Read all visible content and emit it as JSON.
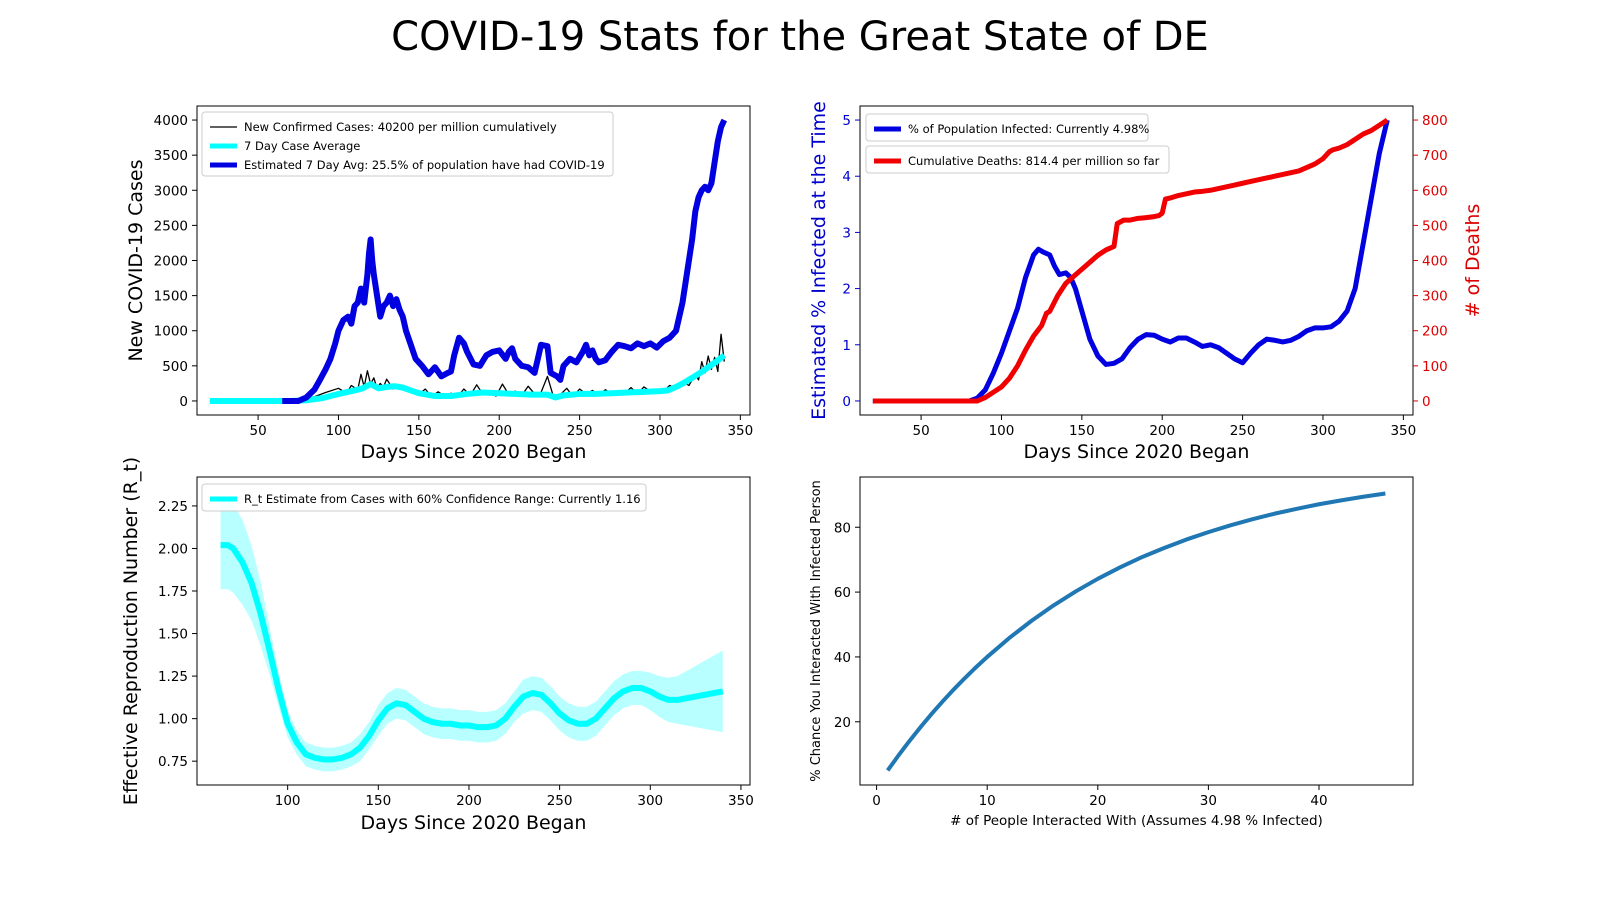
{
  "figure_title": "COVID-19 Stats for the Great State of DE",
  "colors": {
    "black": "#000000",
    "cyan": "#00ffff",
    "blue": "#0000e0",
    "red": "#f00000",
    "steel": "#1f77b4",
    "band": "#b8ffff",
    "axis_blue": "#0000cc",
    "axis_red": "#dd0000"
  },
  "chart_data": [
    {
      "id": "cases",
      "type": "line",
      "xlabel": "Days Since 2020 Began",
      "ylabel": "New COVID-19 Cases",
      "xlim": [
        12,
        356
      ],
      "ylim": [
        -200,
        4200
      ],
      "xticks": [
        50,
        100,
        150,
        200,
        250,
        300,
        350
      ],
      "yticks": [
        0,
        500,
        1000,
        1500,
        2000,
        2500,
        3000,
        3500,
        4000
      ],
      "legend": "top-left",
      "series": [
        {
          "name": "New Confirmed Cases: 40200 per million cumulatively",
          "color_key": "black",
          "width": 1.3,
          "x": [
            20,
            60,
            75,
            85,
            92,
            100,
            105,
            108,
            112,
            114,
            116,
            118,
            120,
            122,
            124,
            126,
            128,
            130,
            134,
            138,
            142,
            146,
            150,
            154,
            158,
            162,
            166,
            170,
            174,
            178,
            182,
            186,
            190,
            194,
            198,
            202,
            206,
            210,
            214,
            218,
            222,
            226,
            230,
            234,
            238,
            242,
            246,
            250,
            254,
            258,
            262,
            266,
            270,
            274,
            278,
            282,
            286,
            290,
            294,
            298,
            302,
            306,
            310,
            314,
            318,
            322,
            324,
            326,
            328,
            330,
            332,
            334,
            336,
            338,
            340
          ],
          "y": [
            0,
            0,
            10,
            60,
            120,
            180,
            110,
            220,
            160,
            380,
            200,
            430,
            240,
            330,
            180,
            250,
            200,
            310,
            170,
            230,
            140,
            160,
            90,
            170,
            60,
            130,
            70,
            110,
            60,
            170,
            80,
            230,
            90,
            120,
            70,
            240,
            90,
            140,
            80,
            210,
            100,
            120,
            350,
            40,
            90,
            180,
            60,
            170,
            100,
            150,
            80,
            160,
            100,
            140,
            110,
            190,
            100,
            200,
            140,
            160,
            130,
            220,
            190,
            280,
            220,
            380,
            300,
            560,
            400,
            640,
            450,
            620,
            420,
            950,
            560
          ]
        },
        {
          "name": "7 Day Case Average",
          "color_key": "cyan",
          "width": 6,
          "x": [
            20,
            60,
            70,
            80,
            90,
            100,
            110,
            115,
            120,
            125,
            130,
            135,
            140,
            145,
            150,
            160,
            170,
            180,
            190,
            200,
            210,
            220,
            230,
            235,
            240,
            250,
            260,
            270,
            280,
            290,
            300,
            305,
            310,
            315,
            320,
            325,
            330,
            335,
            340
          ],
          "y": [
            0,
            0,
            0,
            10,
            40,
            100,
            150,
            180,
            240,
            180,
            200,
            210,
            190,
            150,
            110,
            70,
            70,
            100,
            120,
            110,
            100,
            90,
            90,
            50,
            80,
            100,
            100,
            110,
            120,
            130,
            140,
            150,
            200,
            260,
            330,
            400,
            480,
            560,
            650
          ]
        },
        {
          "name": "Estimated 7 Day Avg: 25.5% of population have had COVID-19",
          "color_key": "blue",
          "width": 6,
          "x": [
            65,
            70,
            75,
            80,
            85,
            88,
            92,
            95,
            98,
            100,
            103,
            106,
            108,
            110,
            112,
            114,
            116,
            118,
            119,
            120,
            121,
            122,
            124,
            126,
            128,
            130,
            132,
            134,
            136,
            138,
            140,
            142,
            145,
            148,
            152,
            156,
            160,
            164,
            168,
            170,
            172,
            175,
            178,
            180,
            184,
            188,
            192,
            196,
            200,
            204,
            206,
            208,
            210,
            214,
            218,
            222,
            226,
            230,
            232,
            236,
            238,
            240,
            244,
            248,
            252,
            254,
            256,
            258,
            260,
            262,
            266,
            270,
            274,
            278,
            282,
            286,
            290,
            294,
            298,
            302,
            306,
            310,
            312,
            314,
            316,
            318,
            320,
            322,
            324,
            326,
            328,
            330,
            332,
            334,
            336,
            338,
            340
          ],
          "y": [
            0,
            0,
            0,
            50,
            160,
            280,
            450,
            600,
            820,
            1000,
            1150,
            1200,
            1100,
            1350,
            1400,
            1600,
            1400,
            1800,
            2100,
            2300,
            2000,
            1800,
            1500,
            1200,
            1350,
            1400,
            1500,
            1350,
            1450,
            1300,
            1200,
            1000,
            800,
            600,
            500,
            380,
            480,
            350,
            400,
            420,
            650,
            900,
            820,
            700,
            520,
            500,
            650,
            700,
            720,
            600,
            700,
            750,
            600,
            500,
            480,
            400,
            800,
            780,
            400,
            350,
            300,
            500,
            600,
            550,
            700,
            800,
            650,
            720,
            600,
            550,
            580,
            700,
            800,
            780,
            750,
            820,
            780,
            820,
            760,
            850,
            900,
            1000,
            1200,
            1400,
            1700,
            2000,
            2300,
            2700,
            2900,
            3000,
            3050,
            3000,
            3100,
            3400,
            3700,
            3900,
            4000
          ]
        }
      ]
    },
    {
      "id": "infected",
      "type": "line",
      "xlabel": "Days Since 2020 Began",
      "ylabel": "Estimated % Infected at the Time",
      "y2label": "# of Deaths",
      "xlim": [
        12,
        356
      ],
      "ylim": [
        -0.25,
        5.25
      ],
      "y2lim": [
        -40,
        840
      ],
      "xticks": [
        50,
        100,
        150,
        200,
        250,
        300,
        350
      ],
      "yticks": [
        0,
        1,
        2,
        3,
        4,
        5
      ],
      "y2ticks": [
        0,
        100,
        200,
        300,
        400,
        500,
        600,
        700,
        800
      ],
      "legend": "top-left",
      "series": [
        {
          "name": "% of Population Infected: Currently 4.98%",
          "color_key": "blue",
          "axis": "left",
          "width": 5,
          "x": [
            20,
            70,
            80,
            85,
            90,
            95,
            100,
            105,
            110,
            115,
            120,
            123,
            126,
            130,
            133,
            136,
            140,
            143,
            146,
            150,
            155,
            160,
            165,
            170,
            175,
            180,
            185,
            190,
            195,
            200,
            205,
            210,
            215,
            220,
            225,
            230,
            235,
            240,
            245,
            250,
            255,
            260,
            265,
            270,
            275,
            280,
            285,
            290,
            295,
            300,
            305,
            310,
            315,
            320,
            325,
            330,
            335,
            340
          ],
          "y": [
            0,
            0,
            0,
            0.05,
            0.2,
            0.5,
            0.85,
            1.25,
            1.65,
            2.2,
            2.6,
            2.7,
            2.65,
            2.6,
            2.4,
            2.25,
            2.28,
            2.2,
            2.0,
            1.6,
            1.1,
            0.8,
            0.65,
            0.67,
            0.75,
            0.95,
            1.1,
            1.18,
            1.17,
            1.1,
            1.05,
            1.12,
            1.12,
            1.05,
            0.97,
            1.0,
            0.95,
            0.85,
            0.75,
            0.68,
            0.85,
            1.0,
            1.1,
            1.08,
            1.05,
            1.08,
            1.15,
            1.25,
            1.3,
            1.3,
            1.32,
            1.42,
            1.6,
            2.0,
            2.8,
            3.6,
            4.4,
            5.0
          ]
        },
        {
          "name": "Cumulative Deaths: 814.4 per million so far",
          "color_key": "red",
          "axis": "right",
          "width": 5,
          "x": [
            20,
            70,
            85,
            90,
            95,
            100,
            105,
            110,
            115,
            120,
            125,
            128,
            130,
            135,
            140,
            145,
            150,
            155,
            160,
            165,
            170,
            172,
            174,
            176,
            180,
            185,
            190,
            195,
            198,
            200,
            202,
            205,
            210,
            215,
            220,
            225,
            230,
            235,
            240,
            245,
            250,
            255,
            260,
            265,
            270,
            275,
            280,
            285,
            290,
            295,
            300,
            302,
            304,
            306,
            310,
            315,
            320,
            325,
            330,
            335,
            340
          ],
          "y": [
            0,
            0,
            0,
            10,
            25,
            40,
            65,
            100,
            145,
            185,
            215,
            250,
            255,
            300,
            335,
            355,
            375,
            395,
            415,
            430,
            440,
            505,
            510,
            515,
            515,
            520,
            522,
            525,
            528,
            535,
            575,
            578,
            585,
            590,
            595,
            597,
            600,
            605,
            610,
            615,
            620,
            625,
            630,
            635,
            640,
            645,
            650,
            655,
            665,
            675,
            690,
            700,
            710,
            715,
            720,
            730,
            745,
            760,
            770,
            785,
            800
          ]
        }
      ]
    },
    {
      "id": "rt",
      "type": "line",
      "xlabel": "Days Since 2020 Began",
      "ylabel": "Effective Reproduction Number (R_t)",
      "xlim": [
        50,
        355
      ],
      "ylim": [
        0.61,
        2.42
      ],
      "xticks": [
        100,
        150,
        200,
        250,
        300,
        350
      ],
      "yticks": [
        0.75,
        1.0,
        1.25,
        1.5,
        1.75,
        2.0,
        2.25
      ],
      "legend": "top-left",
      "series": [
        {
          "name": "R_t Estimate from Cases with 60% Confidence Range: Currently 1.16",
          "color_key": "cyan",
          "width": 6,
          "x": [
            63,
            67,
            70,
            75,
            80,
            85,
            90,
            95,
            100,
            105,
            110,
            115,
            120,
            125,
            130,
            135,
            140,
            145,
            150,
            155,
            160,
            165,
            170,
            175,
            180,
            185,
            190,
            195,
            200,
            205,
            210,
            215,
            220,
            225,
            230,
            235,
            240,
            245,
            250,
            255,
            260,
            265,
            270,
            275,
            280,
            285,
            290,
            295,
            300,
            305,
            310,
            315,
            320,
            325,
            330,
            335,
            340
          ],
          "y": [
            2.02,
            2.02,
            2.0,
            1.92,
            1.8,
            1.62,
            1.4,
            1.17,
            0.97,
            0.86,
            0.79,
            0.77,
            0.76,
            0.76,
            0.77,
            0.79,
            0.83,
            0.9,
            0.99,
            1.06,
            1.09,
            1.08,
            1.04,
            1.0,
            0.98,
            0.97,
            0.97,
            0.96,
            0.96,
            0.95,
            0.95,
            0.96,
            1.0,
            1.07,
            1.13,
            1.15,
            1.14,
            1.09,
            1.03,
            0.99,
            0.97,
            0.97,
            1.0,
            1.06,
            1.12,
            1.16,
            1.18,
            1.18,
            1.16,
            1.13,
            1.11,
            1.11,
            1.12,
            1.13,
            1.14,
            1.15,
            1.16
          ],
          "band_width": [
            0.26,
            0.26,
            0.26,
            0.25,
            0.22,
            0.19,
            0.14,
            0.1,
            0.08,
            0.07,
            0.07,
            0.07,
            0.07,
            0.07,
            0.07,
            0.07,
            0.08,
            0.08,
            0.09,
            0.09,
            0.09,
            0.09,
            0.09,
            0.09,
            0.09,
            0.09,
            0.09,
            0.09,
            0.09,
            0.09,
            0.09,
            0.09,
            0.09,
            0.09,
            0.1,
            0.1,
            0.1,
            0.1,
            0.1,
            0.1,
            0.1,
            0.1,
            0.1,
            0.1,
            0.1,
            0.1,
            0.1,
            0.1,
            0.11,
            0.12,
            0.13,
            0.14,
            0.16,
            0.18,
            0.2,
            0.22,
            0.24
          ]
        }
      ]
    },
    {
      "id": "chance",
      "type": "line",
      "xlabel": "# of People Interacted With (Assumes 4.98 % Infected)",
      "ylabel": "% Chance You Interacted With Infected Person",
      "xlim": [
        -1.5,
        48.5
      ],
      "ylim": [
        0.5,
        95.5
      ],
      "xticks": [
        0,
        10,
        20,
        30,
        40
      ],
      "yticks": [
        20,
        40,
        60,
        80
      ],
      "infected_fraction": 0.0498,
      "series": [
        {
          "name": "",
          "color_key": "steel",
          "width": 4,
          "x": [
            1,
            2,
            3,
            4,
            5,
            6,
            7,
            8,
            9,
            10,
            12,
            14,
            16,
            18,
            20,
            22,
            24,
            26,
            28,
            30,
            32,
            34,
            36,
            38,
            40,
            42,
            44,
            46
          ],
          "y": [
            4.98,
            9.71,
            14.2,
            18.47,
            22.53,
            26.39,
            30.06,
            33.54,
            36.86,
            40.0,
            45.85,
            51.12,
            55.9,
            60.2,
            64.1,
            67.6,
            70.8,
            73.6,
            76.2,
            78.5,
            80.6,
            82.5,
            84.2,
            85.7,
            87.1,
            88.3,
            89.4,
            90.4
          ]
        }
      ]
    }
  ]
}
